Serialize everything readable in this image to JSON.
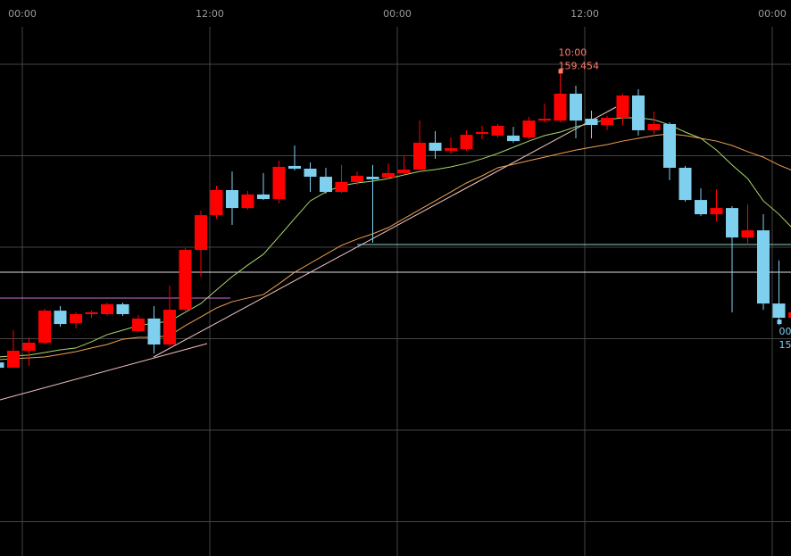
{
  "chart_data": {
    "type": "candlestick",
    "categories": [
      null,
      null,
      "00:00",
      null,
      null,
      null,
      null,
      null,
      null,
      null,
      null,
      null,
      null,
      null,
      "12:00",
      null,
      null,
      null,
      null,
      null,
      null,
      null,
      null,
      null,
      null,
      null,
      "00:00",
      null,
      null,
      null,
      null,
      null,
      null,
      null,
      null,
      null,
      null,
      null,
      "12:00",
      null,
      null,
      null,
      null,
      null,
      null,
      null,
      null,
      null,
      null,
      null,
      "00:00",
      null
    ],
    "open": [
      157.87,
      157.841,
      157.934,
      157.978,
      158.153,
      158.085,
      158.134,
      158.134,
      158.188,
      158.041,
      158.11,
      157.968,
      158.158,
      158.485,
      158.675,
      158.812,
      158.714,
      158.788,
      158.763,
      158.944,
      158.929,
      158.885,
      158.802,
      158.856,
      158.885,
      158.88,
      158.905,
      158.924,
      159.071,
      159.027,
      159.036,
      159.119,
      159.11,
      159.11,
      159.1,
      159.192,
      159.192,
      159.339,
      159.202,
      159.168,
      159.207,
      159.329,
      159.139,
      159.173,
      158.934,
      158.758,
      158.68,
      158.714,
      158.553,
      158.592,
      158.192,
      158.114
    ],
    "high": [
      157.9,
      158.046,
      158.007,
      158.163,
      158.178,
      158.144,
      158.153,
      158.197,
      158.197,
      158.129,
      158.178,
      158.29,
      158.495,
      158.7,
      158.836,
      158.914,
      158.807,
      158.905,
      158.973,
      159.056,
      158.963,
      158.934,
      158.949,
      158.914,
      158.949,
      158.958,
      158.997,
      159.192,
      159.134,
      159.1,
      159.139,
      159.163,
      159.173,
      159.158,
      159.212,
      159.285,
      159.454,
      159.383,
      159.246,
      159.217,
      159.339,
      159.363,
      159.241,
      159.183,
      158.944,
      158.822,
      158.817,
      158.724,
      158.734,
      158.68,
      158.427,
      158.153
    ],
    "low": [
      157.831,
      157.841,
      157.851,
      157.968,
      158.065,
      158.056,
      158.114,
      158.124,
      158.124,
      158.036,
      157.919,
      157.958,
      158.144,
      158.339,
      158.656,
      158.622,
      158.705,
      158.758,
      158.739,
      158.919,
      158.802,
      158.792,
      158.797,
      158.841,
      158.524,
      158.871,
      158.895,
      158.914,
      158.983,
      159.012,
      159.027,
      159.09,
      159.1,
      159.071,
      159.09,
      159.183,
      159.183,
      159.095,
      159.095,
      159.139,
      159.168,
      159.11,
      159.119,
      158.866,
      158.749,
      158.671,
      158.641,
      158.144,
      158.51,
      158.158,
      158.075,
      158.105
    ],
    "close": [
      157.841,
      157.934,
      157.978,
      158.153,
      158.08,
      158.134,
      158.144,
      158.188,
      158.134,
      158.11,
      157.968,
      158.158,
      158.485,
      158.675,
      158.812,
      158.714,
      158.788,
      158.763,
      158.939,
      158.929,
      158.885,
      158.802,
      158.856,
      158.89,
      158.871,
      158.905,
      158.924,
      159.071,
      159.027,
      159.041,
      159.114,
      159.129,
      159.163,
      159.08,
      159.192,
      159.202,
      159.339,
      159.192,
      159.168,
      159.207,
      159.329,
      159.139,
      159.173,
      158.934,
      158.758,
      158.68,
      158.714,
      158.553,
      158.592,
      158.192,
      158.114,
      158.144
    ],
    "up_color": "#ff0000",
    "down_color": "#7fd0ef",
    "overlays": [
      {
        "color": "#a8d86e",
        "values": [
          157.9,
          157.905,
          157.91,
          157.924,
          157.939,
          157.949,
          157.983,
          158.022,
          158.046,
          158.071,
          158.085,
          158.095,
          158.144,
          158.192,
          158.266,
          158.339,
          158.402,
          158.461,
          158.558,
          158.656,
          158.753,
          158.802,
          158.836,
          158.851,
          158.861,
          158.875,
          158.895,
          158.914,
          158.924,
          158.939,
          158.958,
          158.983,
          159.012,
          159.046,
          159.08,
          159.11,
          159.129,
          159.158,
          159.178,
          159.197,
          159.207,
          159.207,
          159.197,
          159.168,
          159.129,
          159.095,
          159.031,
          158.949,
          158.875,
          158.753,
          158.68,
          158.592
        ]
      },
      {
        "color": "#f0a050",
        "values": [
          157.885,
          157.89,
          157.895,
          157.9,
          157.914,
          157.929,
          157.949,
          157.968,
          157.997,
          158.007,
          158.007,
          158.017,
          158.071,
          158.119,
          158.168,
          158.202,
          158.222,
          158.241,
          158.3,
          158.363,
          158.412,
          158.461,
          158.51,
          158.544,
          158.573,
          158.607,
          158.656,
          158.705,
          158.753,
          158.802,
          158.851,
          158.89,
          158.934,
          158.953,
          158.973,
          158.992,
          159.012,
          159.031,
          159.046,
          159.061,
          159.08,
          159.095,
          159.11,
          159.119,
          159.11,
          159.095,
          159.08,
          159.056,
          159.022,
          158.992,
          158.949,
          158.914
        ]
      }
    ],
    "ylim": [
      156.812,
      159.851
    ],
    "ygrid": [
      159.5,
      159.0,
      158.5,
      158.0,
      157.5,
      157.0
    ],
    "high_marker": {
      "label": "10:00",
      "color": "#ff7b6b"
    },
    "last_marker": {
      "time": "00",
      "price": "15"
    }
  }
}
